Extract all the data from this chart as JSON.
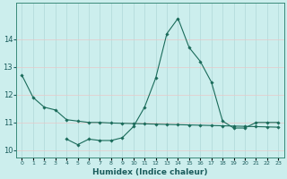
{
  "title": "",
  "xlabel": "Humidex (Indice chaleur)",
  "ylabel": "",
  "bg_color": "#cceeed",
  "grid_color": "#b0d8d8",
  "line_color": "#1a6b5a",
  "x_values": [
    0,
    1,
    2,
    3,
    4,
    5,
    6,
    7,
    8,
    9,
    10,
    11,
    12,
    13,
    14,
    15,
    16,
    17,
    18,
    19,
    20,
    21,
    22,
    23
  ],
  "line1_y": [
    12.7,
    11.9,
    11.55,
    11.45,
    11.1,
    11.05,
    11.0,
    11.0,
    10.98,
    10.97,
    10.96,
    10.95,
    10.94,
    10.93,
    10.92,
    10.91,
    10.9,
    10.89,
    10.88,
    10.87,
    10.86,
    10.85,
    10.84,
    10.83
  ],
  "line2_y": [
    null,
    null,
    null,
    null,
    10.4,
    10.2,
    10.4,
    10.35,
    10.35,
    10.45,
    10.85,
    11.55,
    12.6,
    14.2,
    14.75,
    13.7,
    13.2,
    12.45,
    11.05,
    10.8,
    10.8,
    11.0,
    11.0,
    11.0
  ],
  "ylim": [
    9.75,
    15.3
  ],
  "yticks": [
    10,
    11,
    12,
    13,
    14
  ],
  "xlim": [
    -0.5,
    23.5
  ],
  "xtick_labels": [
    "0",
    "1",
    "2",
    "3",
    "4",
    "5",
    "6",
    "7",
    "8",
    "9",
    "10",
    "11",
    "12",
    "13",
    "14",
    "15",
    "16",
    "17",
    "18",
    "19",
    "20",
    "21",
    "22",
    "23"
  ]
}
